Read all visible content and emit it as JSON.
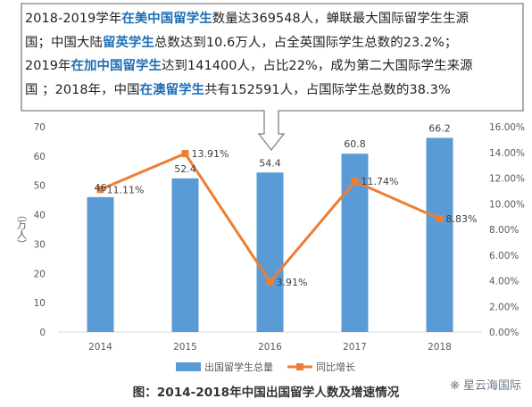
{
  "callout": {
    "lines": [
      [
        {
          "t": "2018-2019学年"
        },
        {
          "t": "在美中国留学生",
          "hl": true
        },
        {
          "t": "数量达369548人，蝉联最大国际留学生生源"
        }
      ],
      [
        {
          "t": "国；中国大陆"
        },
        {
          "t": "留英学生",
          "hl": true
        },
        {
          "t": "总数达到10.6万人，占全英国际学生总数的23.2%；"
        }
      ],
      [
        {
          "t": "2019年"
        },
        {
          "t": "在加中国留学生",
          "hl": true
        },
        {
          "t": "达到141400人，占比22%，成为第二大国际学生来源"
        }
      ],
      [
        {
          "t": "国 ；2018年，中国"
        },
        {
          "t": "在澳留学生",
          "hl": true
        },
        {
          "t": "共有152591人，占国际学生总数的38.3%"
        }
      ]
    ]
  },
  "caption": "图：2014-2018年中国出国留学人数及增速情况",
  "watermark": {
    "icon": "wechat-icon",
    "text": "星云海国际"
  },
  "colors": {
    "bar": "#5b9bd5",
    "line": "#ed7d31",
    "axis": "#d9d9d9",
    "text": "#595959",
    "highlight": "#1f6fb5"
  },
  "chart_data": {
    "type": "bar",
    "categories": [
      "2014",
      "2015",
      "2016",
      "2017",
      "2018"
    ],
    "series": [
      {
        "name": "出国留学生总量",
        "type": "bar",
        "axis": "left",
        "values": [
          46,
          52.4,
          54.4,
          60.8,
          66.2
        ],
        "labels": [
          "46",
          "52.4",
          "54.4",
          "60.8",
          "66.2"
        ]
      },
      {
        "name": "同比增长",
        "type": "line",
        "axis": "right",
        "values": [
          11.11,
          13.91,
          3.91,
          11.74,
          8.83
        ],
        "labels": [
          "11.11%",
          "13.91%",
          "3.91%",
          "11.74%",
          "8.83%"
        ]
      }
    ],
    "ylabel": "（万人）",
    "ylim": [
      0,
      70
    ],
    "yticks": [
      "0",
      "10",
      "20",
      "30",
      "40",
      "50",
      "60",
      "70"
    ],
    "y2lim": [
      0,
      16
    ],
    "y2ticks": [
      "0.00%",
      "2.00%",
      "4.00%",
      "6.00%",
      "8.00%",
      "10.00%",
      "12.00%",
      "14.00%",
      "16.00%"
    ],
    "legend_position": "bottom",
    "grid": false
  }
}
